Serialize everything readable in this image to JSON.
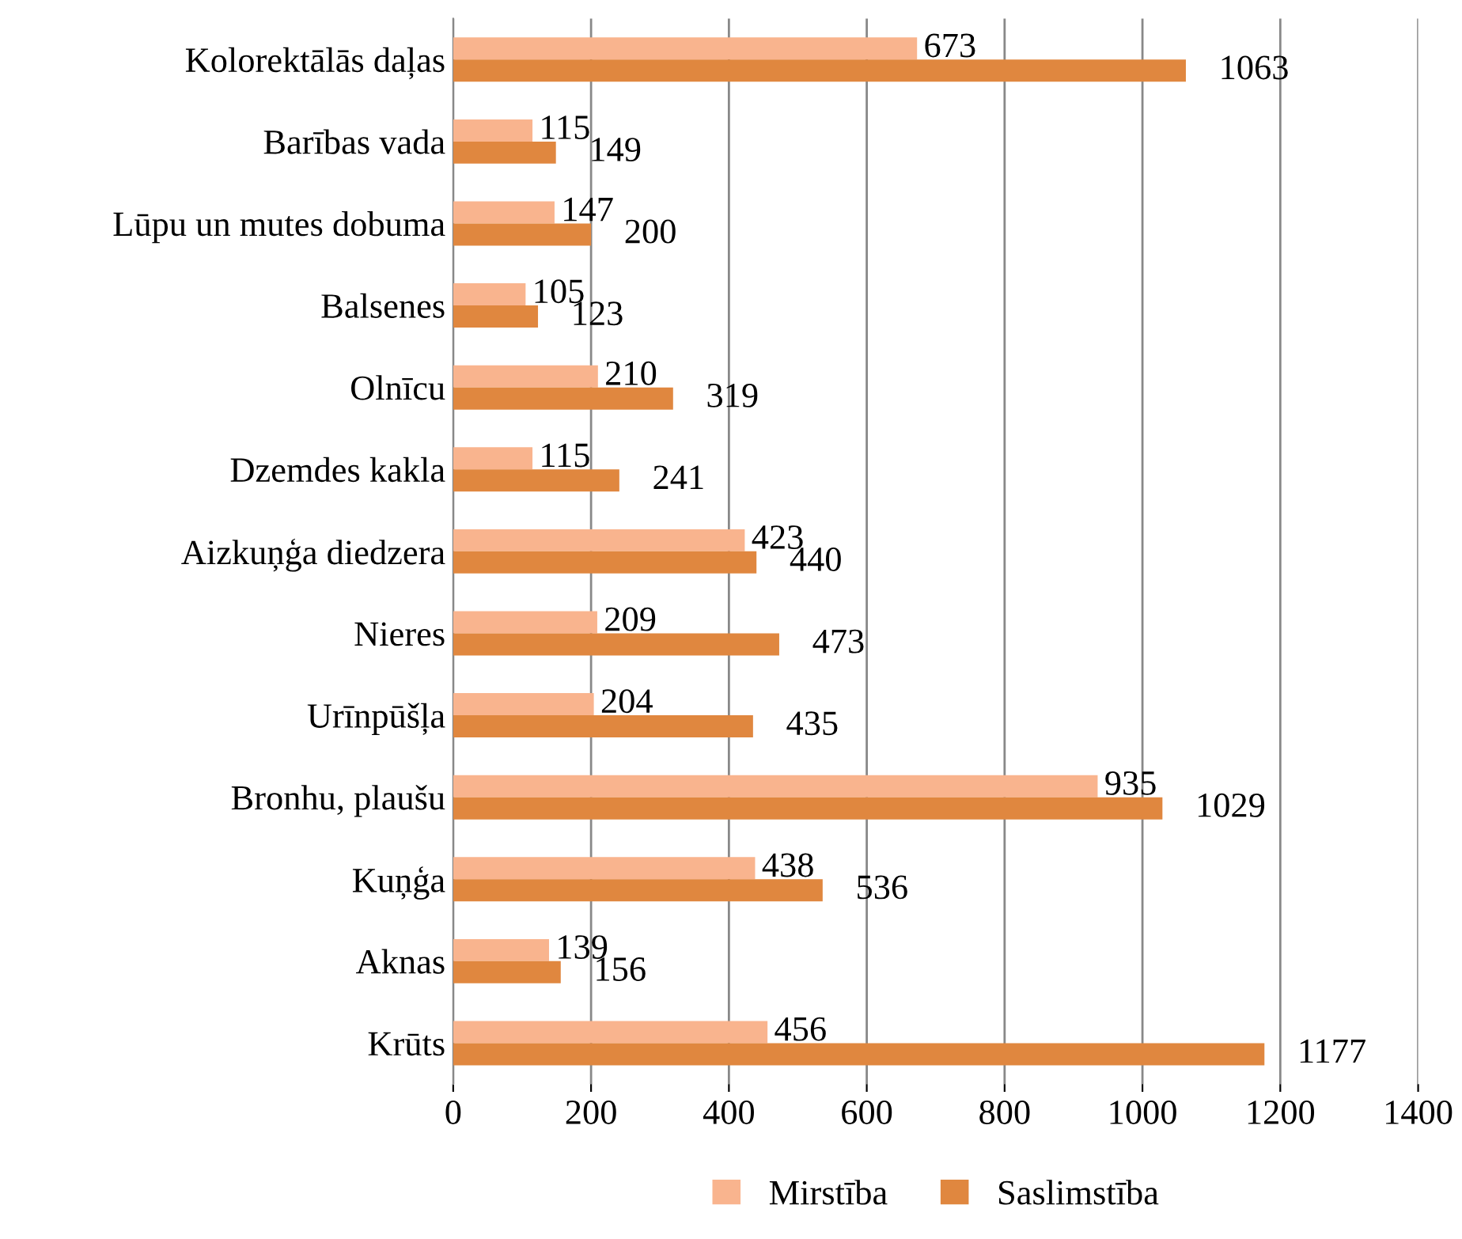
{
  "chart_data": {
    "type": "bar",
    "orientation": "horizontal",
    "categories": [
      "Kolorektālās daļas",
      "Barības vada",
      "Lūpu un mutes dobuma",
      "Balsenes",
      "Olnīcu",
      "Dzemdes kakla",
      "Aizkuņģa diedzera",
      "Nieres",
      "Urīnpūšļa",
      "Bronhu, plaušu",
      "Kuņģa",
      "Aknas",
      "Krūts"
    ],
    "series": [
      {
        "name": "Mirstība",
        "color": "#f9b48e",
        "values": [
          673,
          115,
          147,
          105,
          210,
          115,
          423,
          209,
          204,
          935,
          438,
          139,
          456
        ]
      },
      {
        "name": "Saslimstība",
        "color": "#e0873f",
        "values": [
          1063,
          149,
          200,
          123,
          319,
          241,
          440,
          473,
          435,
          1029,
          536,
          156,
          1177
        ]
      }
    ],
    "xlim": [
      0,
      1400
    ],
    "xticks": [
      0,
      200,
      400,
      600,
      800,
      1000,
      1200,
      1400
    ],
    "grid": "x",
    "legend": "bottom",
    "data_labels": true
  }
}
